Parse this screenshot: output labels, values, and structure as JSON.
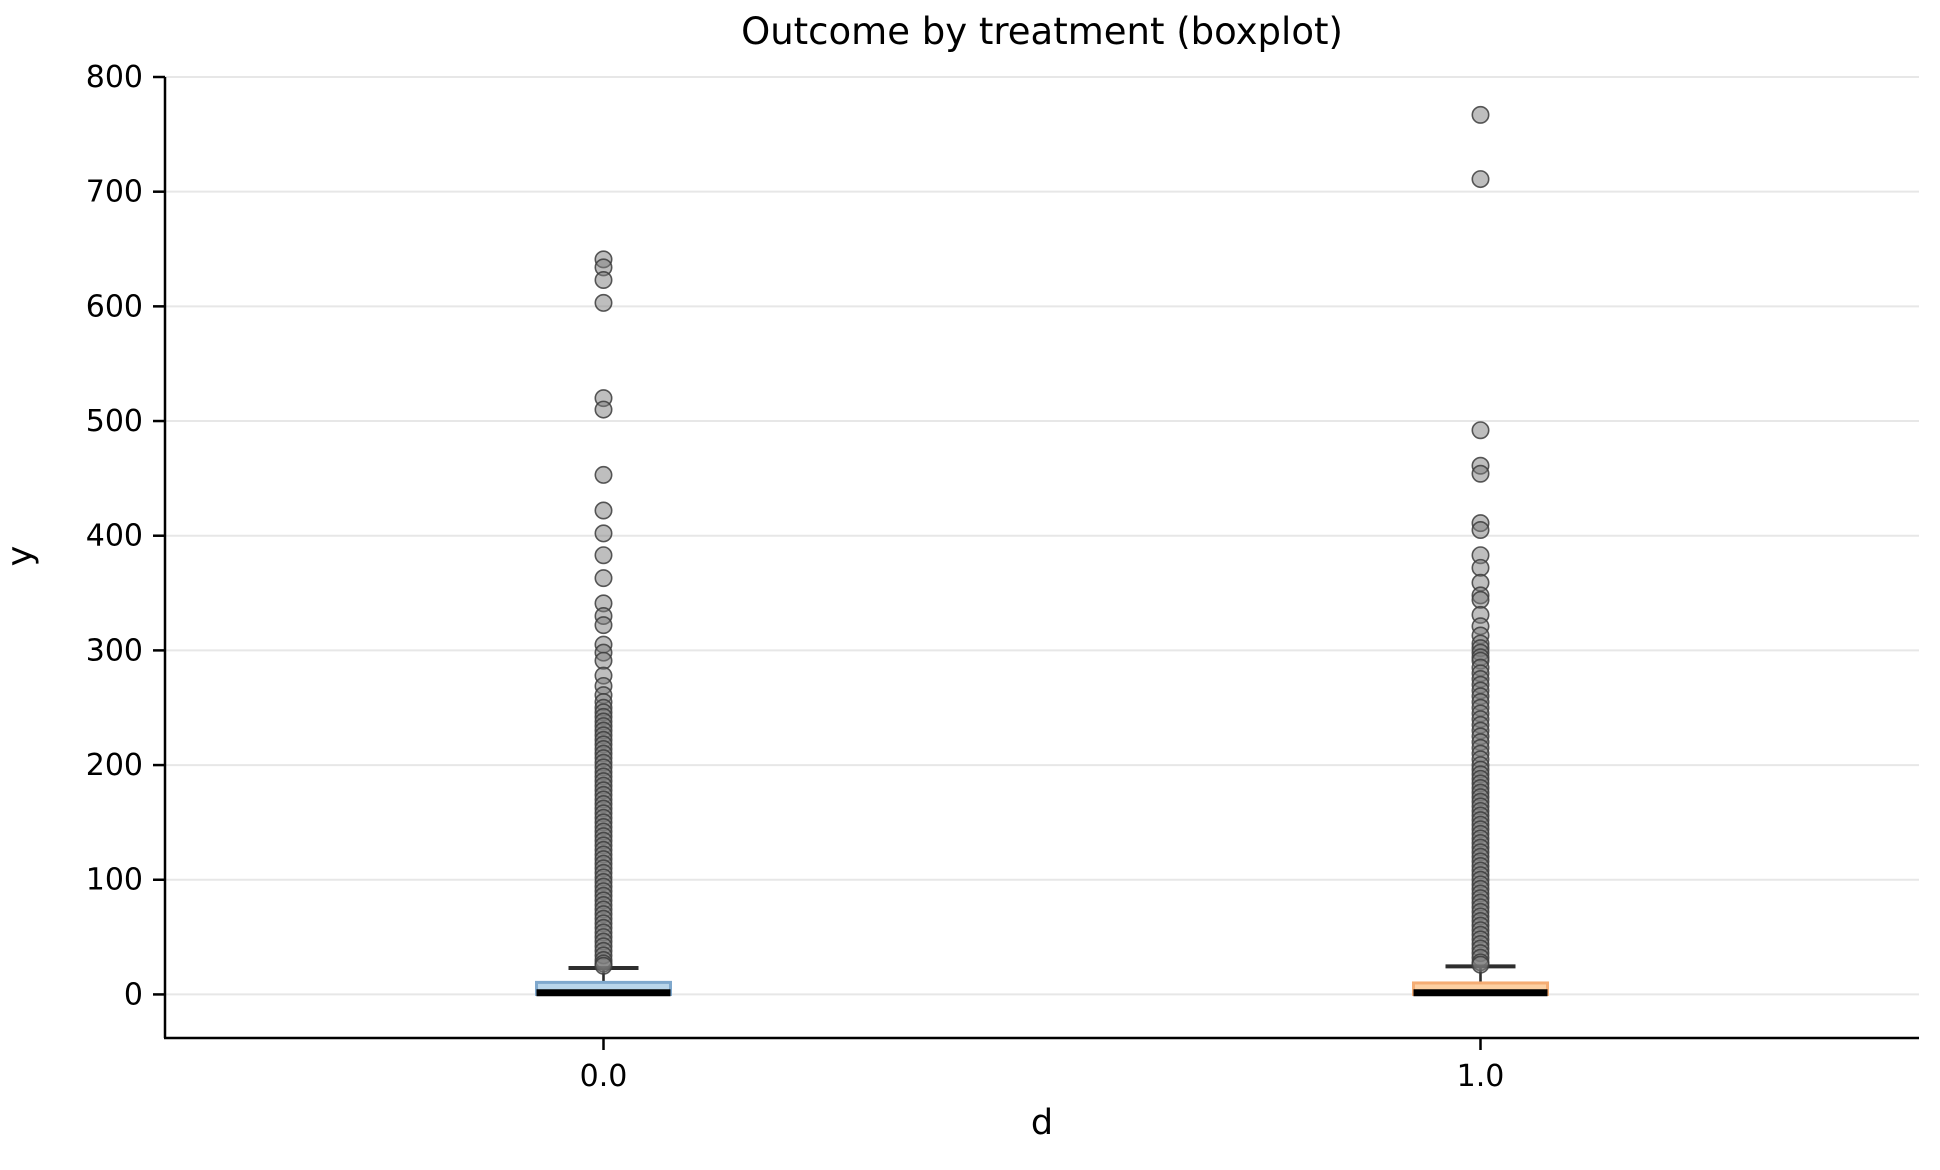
{
  "chart_data": {
    "type": "boxplot",
    "title": "Outcome by treatment (boxplot)",
    "xlabel": "d",
    "ylabel": "y",
    "categories": [
      "0.0",
      "1.0"
    ],
    "ylim": [
      -38,
      800
    ],
    "yticks": [
      0,
      100,
      200,
      300,
      400,
      500,
      600,
      700,
      800
    ],
    "grid": "horizontal-only",
    "legend": "none",
    "colors": {
      "gridline": "#e7e7e7",
      "spine": "#000000",
      "median": "#000000",
      "whisker": "#2e2e2e",
      "outlier_fill": "#7d7d7d",
      "outlier_edge": "#3c3c3c"
    },
    "groups": [
      {
        "label": "0.0",
        "box_face": "#b9d5ea",
        "box_edge": "#7fa8cd",
        "q1": 0,
        "median": 1.5,
        "q3": 10.5,
        "whisker_low": 0,
        "whisker_high": 23,
        "outliers": [
          641,
          634,
          623,
          603,
          520,
          510,
          453,
          422,
          402,
          383,
          363,
          341,
          330,
          322,
          305,
          298,
          291,
          278,
          269,
          261,
          255,
          250,
          246,
          242,
          238,
          234,
          230,
          226,
          222,
          218,
          214,
          210,
          206,
          202,
          198,
          194,
          190,
          186,
          182,
          178,
          174,
          170,
          166,
          162,
          158,
          154,
          150,
          146,
          142,
          138,
          134,
          130,
          126,
          122,
          118,
          114,
          110,
          106,
          102,
          98,
          94,
          90,
          86,
          82,
          78,
          74,
          70,
          66,
          62,
          58,
          54,
          50,
          46,
          42,
          38,
          34,
          30,
          27,
          25
        ]
      },
      {
        "label": "1.0",
        "box_face": "#fdd0a2",
        "box_edge": "#f5ad74",
        "q1": 0,
        "median": 1.5,
        "q3": 10,
        "whisker_low": 0,
        "whisker_high": 24.5,
        "outliers": [
          767,
          711,
          492,
          461,
          454,
          411,
          405,
          383,
          372,
          359,
          348,
          344,
          331,
          321,
          313,
          306,
          302,
          298,
          294,
          291,
          285,
          280,
          275,
          270,
          265,
          260,
          255,
          250,
          245,
          240,
          235,
          230,
          225,
          220,
          215,
          210,
          205,
          200,
          196,
          192,
          188,
          184,
          180,
          176,
          172,
          168,
          164,
          160,
          156,
          152,
          148,
          144,
          140,
          136,
          132,
          128,
          124,
          120,
          116,
          112,
          108,
          104,
          100,
          96,
          92,
          88,
          84,
          80,
          76,
          72,
          68,
          64,
          60,
          56,
          52,
          48,
          44,
          40,
          36,
          32,
          28,
          26
        ]
      }
    ]
  }
}
